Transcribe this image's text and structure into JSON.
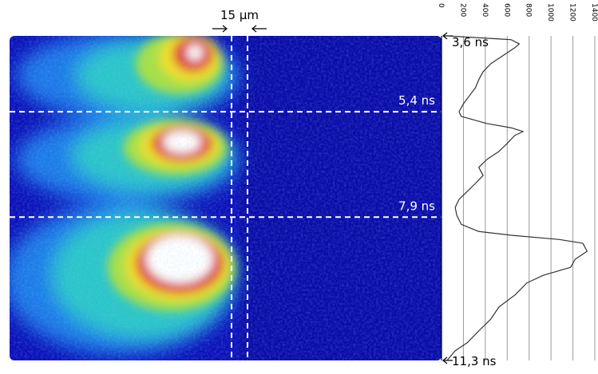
{
  "chart_data": {
    "type": "line",
    "orientation": "horizontal",
    "annotation": "15 µm",
    "xlim": [
      0,
      1400
    ],
    "xticks": [
      0,
      200,
      400,
      600,
      800,
      1000,
      1200,
      1400
    ],
    "ylim": [
      3.6,
      11.3
    ],
    "yticks": [
      {
        "value": 3.6,
        "label": "3,6 ns"
      },
      {
        "value": 5.4,
        "label": "5,4 ns"
      },
      {
        "value": 7.9,
        "label": "7,9 ns"
      },
      {
        "value": 11.3,
        "label": "11,3 ns"
      }
    ],
    "grid": true,
    "color": "#333333",
    "x": [
      3.6,
      3.69,
      3.79,
      3.88,
      4.07,
      4.26,
      4.45,
      4.64,
      4.83,
      5.02,
      5.21,
      5.4,
      5.51,
      5.68,
      5.78,
      5.87,
      5.96,
      6.15,
      6.34,
      6.53,
      6.72,
      6.91,
      7.1,
      7.29,
      7.48,
      7.67,
      7.86,
      8.07,
      8.24,
      8.33,
      8.43,
      8.52,
      8.71,
      8.9,
      9.09,
      9.28,
      9.46,
      9.75,
      10.03,
      10.32,
      10.6,
      10.88,
      11.07,
      11.3
    ],
    "values": [
      50,
      635,
      710,
      670,
      560,
      450,
      380,
      340,
      310,
      255,
      200,
      160,
      180,
      415,
      635,
      745,
      670,
      600,
      525,
      415,
      340,
      380,
      310,
      235,
      160,
      125,
      140,
      180,
      340,
      635,
      1075,
      1290,
      1330,
      1220,
      1180,
      930,
      780,
      670,
      525,
      450,
      340,
      235,
      125,
      50
    ]
  }
}
